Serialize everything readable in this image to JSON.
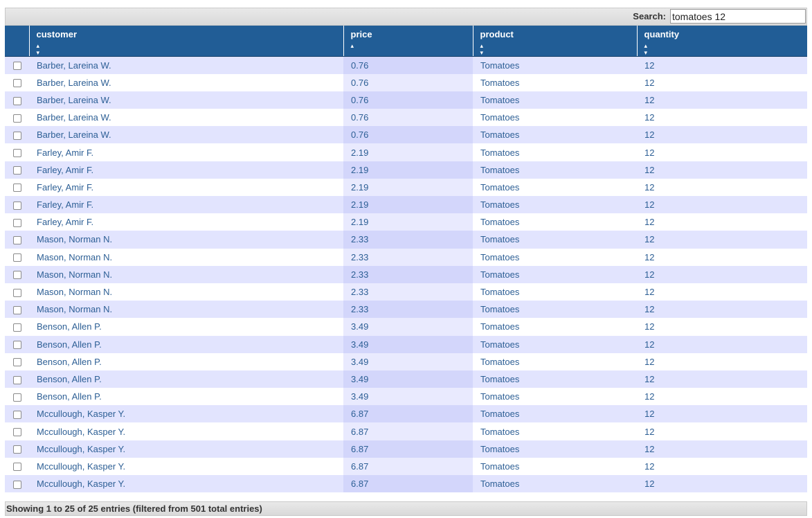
{
  "search": {
    "label": "Search:",
    "value": "tomatoes 12"
  },
  "columns": [
    {
      "label": "customer",
      "sort_icon": "⬍"
    },
    {
      "label": "price",
      "sort_icon": "▲"
    },
    {
      "label": "product",
      "sort_icon": "⬍"
    },
    {
      "label": "quantity",
      "sort_icon": "⬍"
    }
  ],
  "sorted_column": "price",
  "rows": [
    {
      "customer": "Barber, Lareina W.",
      "price": "0.76",
      "product": "Tomatoes",
      "quantity": "12"
    },
    {
      "customer": "Barber, Lareina W.",
      "price": "0.76",
      "product": "Tomatoes",
      "quantity": "12"
    },
    {
      "customer": "Barber, Lareina W.",
      "price": "0.76",
      "product": "Tomatoes",
      "quantity": "12"
    },
    {
      "customer": "Barber, Lareina W.",
      "price": "0.76",
      "product": "Tomatoes",
      "quantity": "12"
    },
    {
      "customer": "Barber, Lareina W.",
      "price": "0.76",
      "product": "Tomatoes",
      "quantity": "12"
    },
    {
      "customer": "Farley, Amir F.",
      "price": "2.19",
      "product": "Tomatoes",
      "quantity": "12"
    },
    {
      "customer": "Farley, Amir F.",
      "price": "2.19",
      "product": "Tomatoes",
      "quantity": "12"
    },
    {
      "customer": "Farley, Amir F.",
      "price": "2.19",
      "product": "Tomatoes",
      "quantity": "12"
    },
    {
      "customer": "Farley, Amir F.",
      "price": "2.19",
      "product": "Tomatoes",
      "quantity": "12"
    },
    {
      "customer": "Farley, Amir F.",
      "price": "2.19",
      "product": "Tomatoes",
      "quantity": "12"
    },
    {
      "customer": "Mason, Norman N.",
      "price": "2.33",
      "product": "Tomatoes",
      "quantity": "12"
    },
    {
      "customer": "Mason, Norman N.",
      "price": "2.33",
      "product": "Tomatoes",
      "quantity": "12"
    },
    {
      "customer": "Mason, Norman N.",
      "price": "2.33",
      "product": "Tomatoes",
      "quantity": "12"
    },
    {
      "customer": "Mason, Norman N.",
      "price": "2.33",
      "product": "Tomatoes",
      "quantity": "12"
    },
    {
      "customer": "Mason, Norman N.",
      "price": "2.33",
      "product": "Tomatoes",
      "quantity": "12"
    },
    {
      "customer": "Benson, Allen P.",
      "price": "3.49",
      "product": "Tomatoes",
      "quantity": "12"
    },
    {
      "customer": "Benson, Allen P.",
      "price": "3.49",
      "product": "Tomatoes",
      "quantity": "12"
    },
    {
      "customer": "Benson, Allen P.",
      "price": "3.49",
      "product": "Tomatoes",
      "quantity": "12"
    },
    {
      "customer": "Benson, Allen P.",
      "price": "3.49",
      "product": "Tomatoes",
      "quantity": "12"
    },
    {
      "customer": "Benson, Allen P.",
      "price": "3.49",
      "product": "Tomatoes",
      "quantity": "12"
    },
    {
      "customer": "Mccullough, Kasper Y.",
      "price": "6.87",
      "product": "Tomatoes",
      "quantity": "12"
    },
    {
      "customer": "Mccullough, Kasper Y.",
      "price": "6.87",
      "product": "Tomatoes",
      "quantity": "12"
    },
    {
      "customer": "Mccullough, Kasper Y.",
      "price": "6.87",
      "product": "Tomatoes",
      "quantity": "12"
    },
    {
      "customer": "Mccullough, Kasper Y.",
      "price": "6.87",
      "product": "Tomatoes",
      "quantity": "12"
    },
    {
      "customer": "Mccullough, Kasper Y.",
      "price": "6.87",
      "product": "Tomatoes",
      "quantity": "12"
    }
  ],
  "footer": {
    "info": "Showing 1 to 25 of 25 entries (filtered from 501 total entries)"
  },
  "colors": {
    "header_bg": "#215d96",
    "odd_row": "#e2e4fe",
    "even_row": "#ffffff",
    "text": "#2d5f95"
  },
  "icons": {
    "sort_both": "sort-both-icon",
    "sort_asc": "sort-ascending-icon"
  }
}
